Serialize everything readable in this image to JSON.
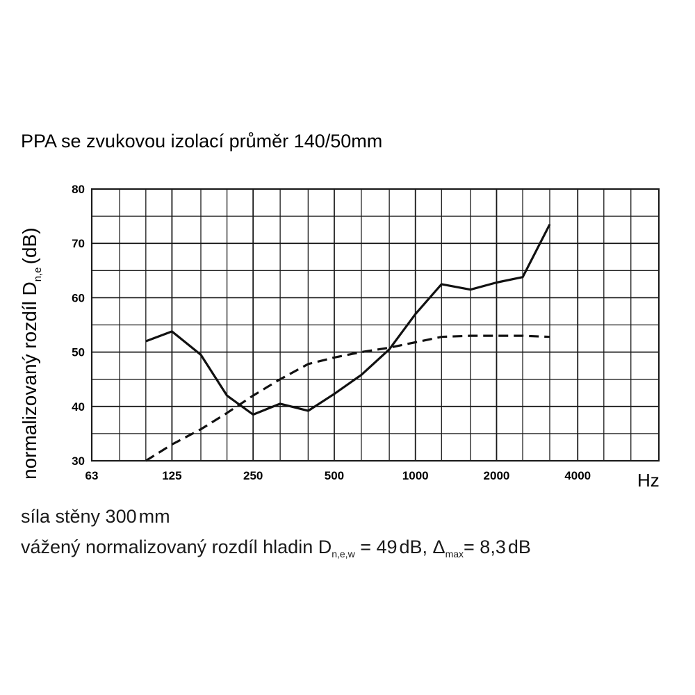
{
  "chart_data": {
    "type": "line",
    "title": "PPA se zvukovou izolací průměr 140/50mm",
    "ylabel": {
      "main": "normalizovaný rozdíl D",
      "sub": "n,e",
      "unit": "(dB)"
    },
    "xlabel": "Hz",
    "x_scale": "log",
    "xlim": [
      63,
      8000
    ],
    "ylim": [
      30,
      80
    ],
    "x_tick_labels": [
      "63",
      "125",
      "250",
      "500",
      "1000",
      "2000",
      "4000"
    ],
    "x_ticks": [
      63,
      125,
      250,
      500,
      1000,
      2000,
      4000
    ],
    "y_ticks": [
      30,
      40,
      50,
      60,
      70,
      80
    ],
    "grid": true,
    "x_grid": [
      63,
      80,
      100,
      125,
      160,
      200,
      250,
      315,
      400,
      500,
      630,
      800,
      1000,
      1250,
      1600,
      2000,
      2500,
      3150,
      4000,
      5000,
      6300,
      8000
    ],
    "series": [
      {
        "style": "solid",
        "x": [
          100,
          125,
          160,
          200,
          250,
          315,
          400,
          500,
          630,
          800,
          1000,
          1250,
          1600,
          2000,
          2500,
          3150
        ],
        "y": [
          52,
          53.8,
          49.5,
          42,
          38.5,
          40.5,
          39.2,
          42.3,
          45.8,
          50.5,
          57,
          62.5,
          61.5,
          62.8,
          63.8,
          73.5
        ]
      },
      {
        "style": "dashed",
        "x": [
          100,
          125,
          160,
          200,
          250,
          315,
          400,
          500,
          630,
          800,
          1000,
          1250,
          1600,
          2000,
          2500,
          3150
        ],
        "y": [
          30,
          33,
          35.8,
          38.8,
          42,
          45,
          47.8,
          49,
          50,
          50.8,
          51.8,
          52.8,
          53,
          53,
          53,
          52.8
        ]
      }
    ]
  },
  "notes": {
    "line1": {
      "pre": "síla stěny 300",
      "post": "mm"
    },
    "line2": {
      "pre": "vážený normalizovaný rozdíl hladin D",
      "sub1": "n,e,w",
      "mid": " = 49",
      "dB1": "dB, Δ",
      "sub2": "max",
      "post": "= 8,3",
      "dB2": "dB"
    }
  }
}
